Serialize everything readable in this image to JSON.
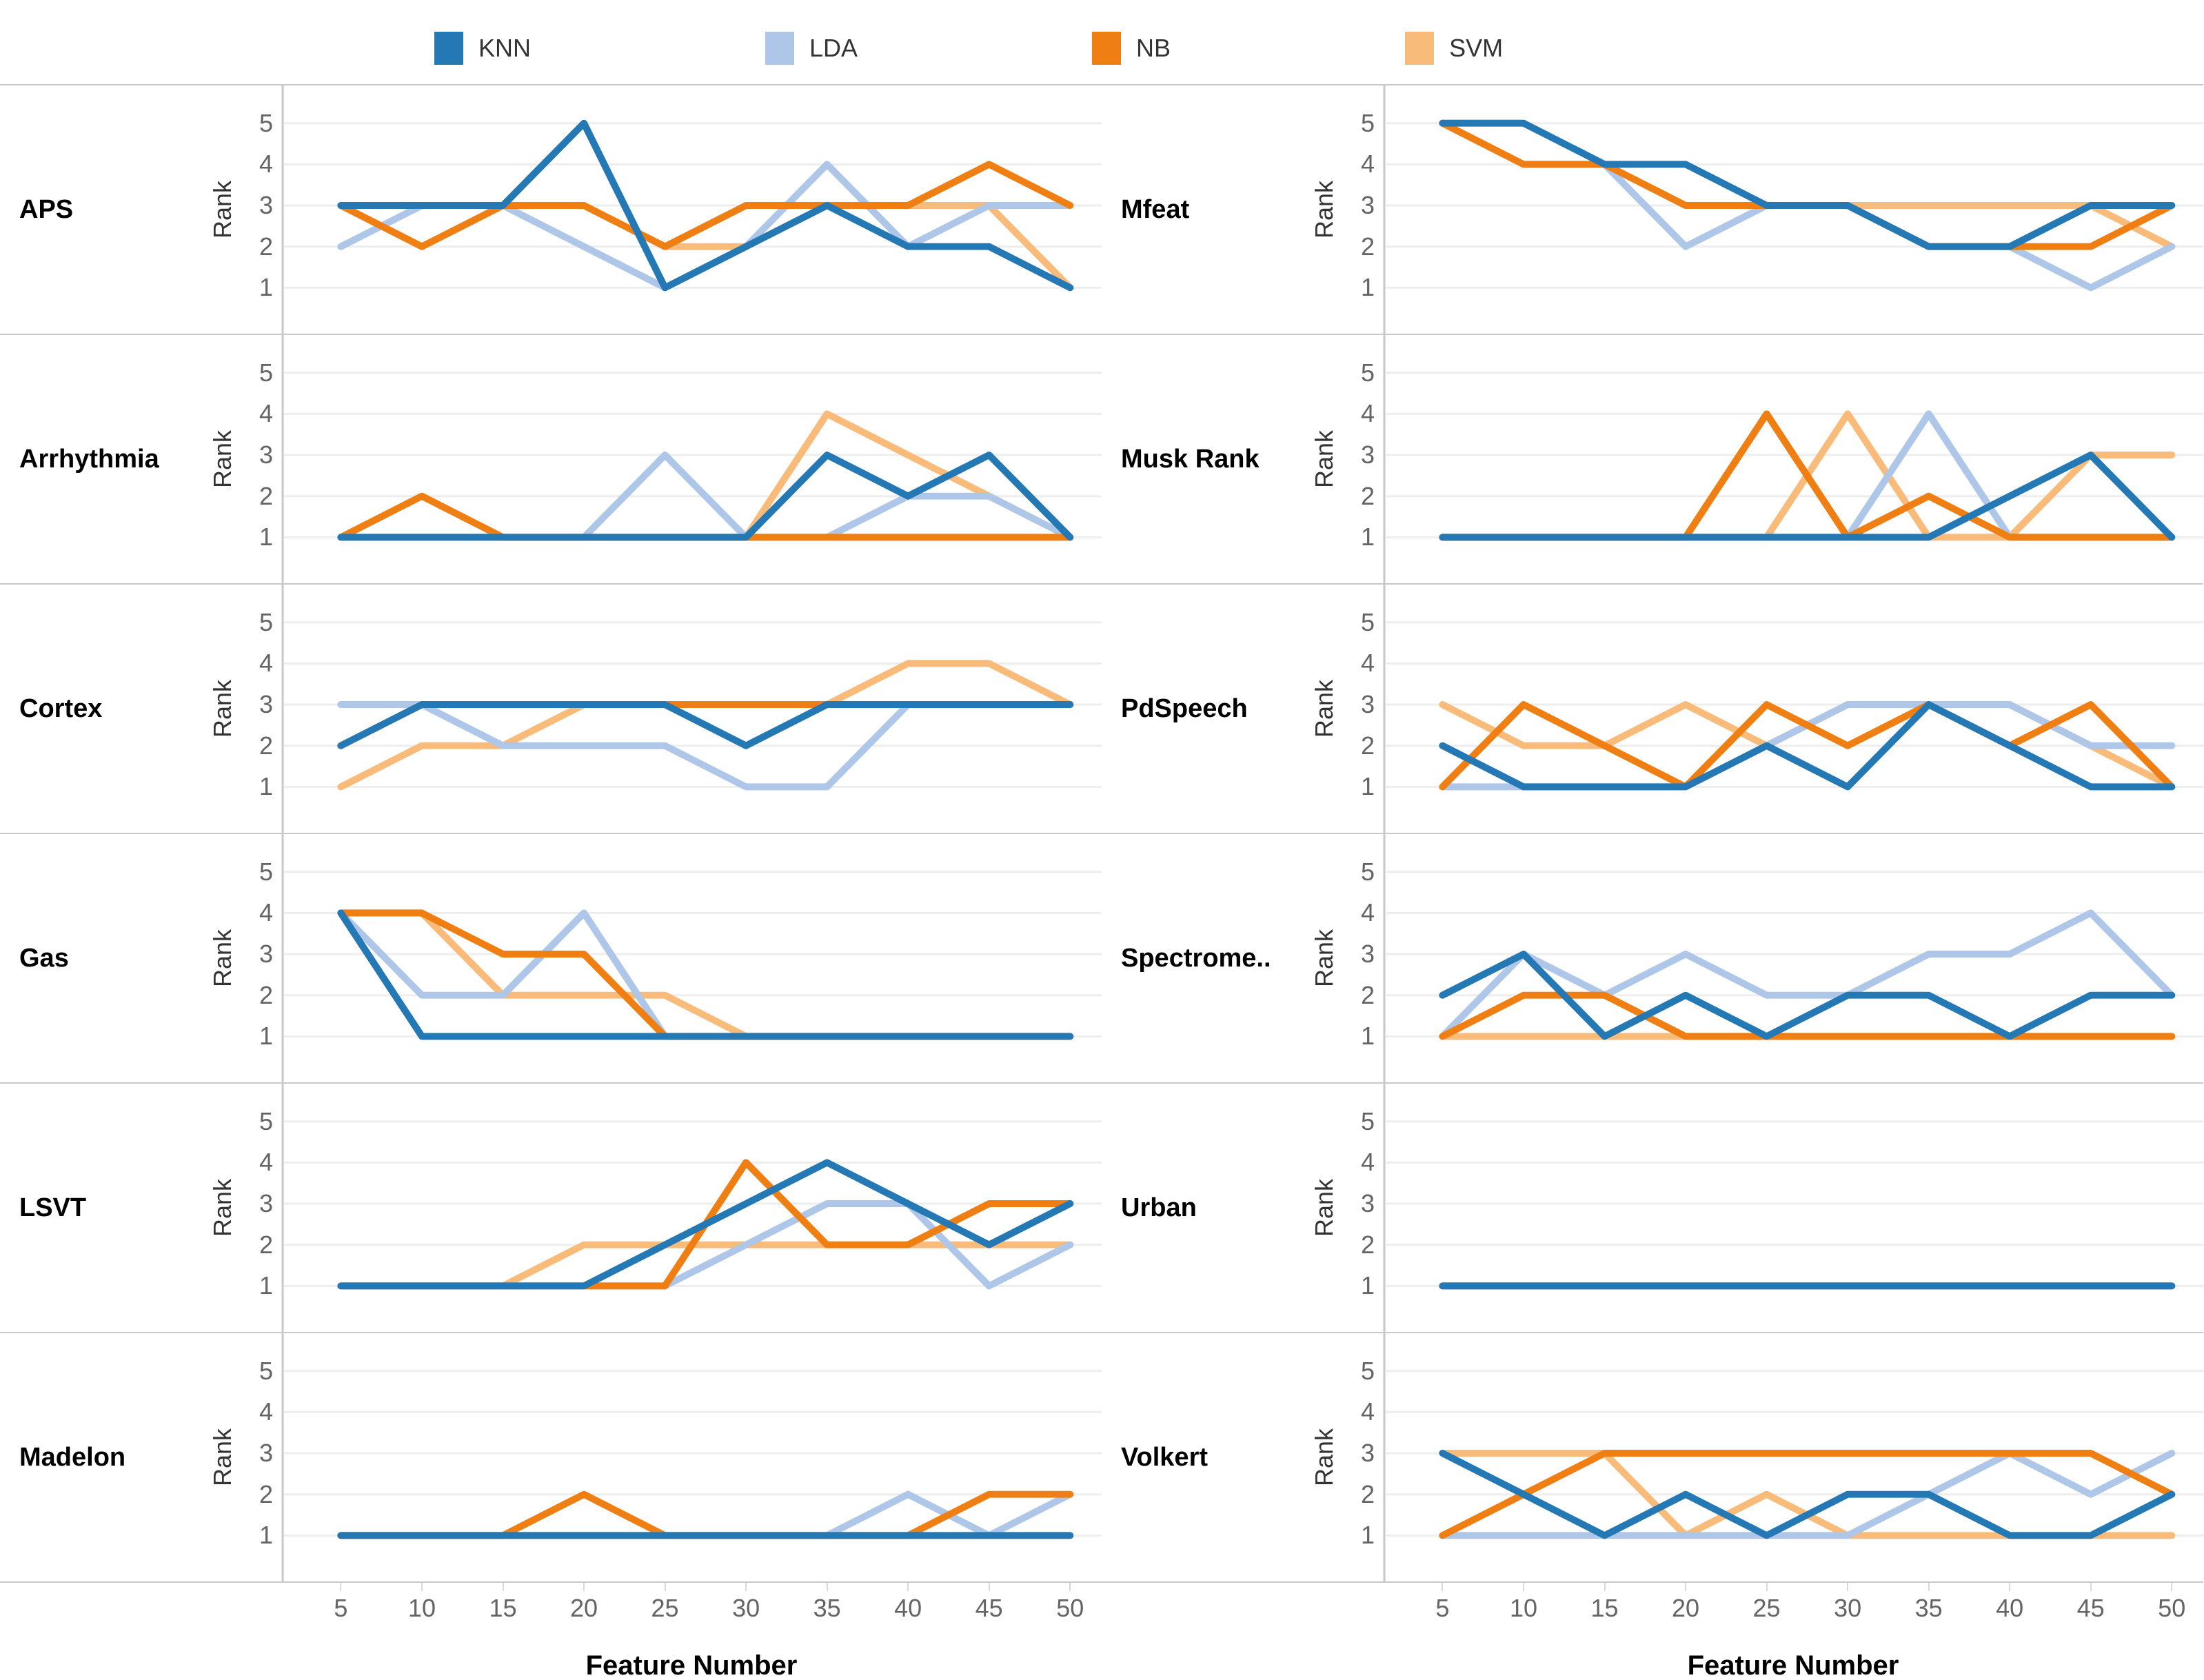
{
  "legend": {
    "items": [
      {
        "label": "KNN",
        "color": "#2478b4"
      },
      {
        "label": "LDA",
        "color": "#aec6e8"
      },
      {
        "label": "NB",
        "color": "#f07f13"
      },
      {
        "label": "SVM",
        "color": "#f9bb7a"
      }
    ]
  },
  "axis": {
    "y_label": "Rank",
    "x_label": "Feature Number",
    "x_ticks": [
      "5",
      "10",
      "15",
      "20",
      "25",
      "30",
      "35",
      "40",
      "45",
      "50"
    ],
    "y_ticks": [
      "5",
      "4",
      "3",
      "2",
      "1"
    ],
    "y_range": [
      1,
      5
    ]
  },
  "chart_data": {
    "type": "line",
    "x": [
      5,
      10,
      15,
      20,
      25,
      30,
      35,
      40,
      45,
      50
    ],
    "xlabel": "Feature Number",
    "ylabel": "Rank",
    "ylim": [
      1,
      5
    ],
    "grid": true,
    "legend_position": "top",
    "layout": {
      "columns": 2,
      "rows_per_column": 6,
      "draw_order": [
        "SVM",
        "LDA",
        "NB",
        "KNN"
      ]
    },
    "panels": [
      {
        "name": "APS",
        "series": [
          {
            "name": "KNN",
            "values": [
              3,
              3,
              3,
              5,
              1,
              2,
              3,
              2,
              2,
              1
            ]
          },
          {
            "name": "LDA",
            "values": [
              2,
              3,
              3,
              2,
              1,
              2,
              4,
              2,
              3,
              3
            ]
          },
          {
            "name": "NB",
            "values": [
              3,
              2,
              3,
              3,
              2,
              3,
              3,
              3,
              4,
              3
            ]
          },
          {
            "name": "SVM",
            "values": [
              3,
              2,
              3,
              3,
              2,
              2,
              3,
              3,
              3,
              1
            ]
          }
        ]
      },
      {
        "name": "Arrhythmia",
        "series": [
          {
            "name": "KNN",
            "values": [
              1,
              1,
              1,
              1,
              1,
              1,
              3,
              2,
              3,
              1
            ]
          },
          {
            "name": "LDA",
            "values": [
              1,
              1,
              1,
              1,
              3,
              1,
              1,
              2,
              2,
              1
            ]
          },
          {
            "name": "NB",
            "values": [
              1,
              2,
              1,
              1,
              1,
              1,
              1,
              1,
              1,
              1
            ]
          },
          {
            "name": "SVM",
            "values": [
              1,
              1,
              1,
              1,
              1,
              1,
              4,
              3,
              2,
              1
            ]
          }
        ]
      },
      {
        "name": "Cortex",
        "series": [
          {
            "name": "KNN",
            "values": [
              2,
              3,
              3,
              3,
              3,
              2,
              3,
              3,
              3,
              3
            ]
          },
          {
            "name": "LDA",
            "values": [
              3,
              3,
              2,
              2,
              2,
              1,
              1,
              3,
              3,
              3
            ]
          },
          {
            "name": "NB",
            "values": [
              2,
              3,
              3,
              3,
              3,
              3,
              3,
              3,
              3,
              3
            ]
          },
          {
            "name": "SVM",
            "values": [
              1,
              2,
              2,
              3,
              3,
              3,
              3,
              4,
              4,
              3
            ]
          }
        ]
      },
      {
        "name": "Gas",
        "series": [
          {
            "name": "KNN",
            "values": [
              4,
              1,
              1,
              1,
              1,
              1,
              1,
              1,
              1,
              1
            ]
          },
          {
            "name": "LDA",
            "values": [
              4,
              2,
              2,
              4,
              1,
              1,
              1,
              1,
              1,
              1
            ]
          },
          {
            "name": "NB",
            "values": [
              4,
              4,
              3,
              3,
              1,
              1,
              1,
              1,
              1,
              1
            ]
          },
          {
            "name": "SVM",
            "values": [
              4,
              4,
              2,
              2,
              2,
              1,
              1,
              1,
              1,
              1
            ]
          }
        ]
      },
      {
        "name": "LSVT",
        "series": [
          {
            "name": "KNN",
            "values": [
              1,
              1,
              1,
              1,
              2,
              3,
              4,
              3,
              2,
              3
            ]
          },
          {
            "name": "LDA",
            "values": [
              1,
              1,
              1,
              1,
              1,
              2,
              3,
              3,
              1,
              2
            ]
          },
          {
            "name": "NB",
            "values": [
              1,
              1,
              1,
              1,
              1,
              4,
              2,
              2,
              3,
              3
            ]
          },
          {
            "name": "SVM",
            "values": [
              1,
              1,
              1,
              2,
              2,
              2,
              2,
              2,
              2,
              2
            ]
          }
        ]
      },
      {
        "name": "Madelon",
        "series": [
          {
            "name": "KNN",
            "values": [
              1,
              1,
              1,
              1,
              1,
              1,
              1,
              1,
              1,
              1
            ]
          },
          {
            "name": "LDA",
            "values": [
              1,
              1,
              1,
              1,
              1,
              1,
              1,
              2,
              1,
              2
            ]
          },
          {
            "name": "NB",
            "values": [
              1,
              1,
              1,
              2,
              1,
              1,
              1,
              1,
              2,
              2
            ]
          },
          {
            "name": "SVM",
            "values": [
              1,
              1,
              1,
              1,
              1,
              1,
              1,
              1,
              1,
              1
            ]
          }
        ]
      },
      {
        "name": "Mfeat",
        "series": [
          {
            "name": "KNN",
            "values": [
              5,
              5,
              4,
              4,
              3,
              3,
              2,
              2,
              3,
              3
            ]
          },
          {
            "name": "LDA",
            "values": [
              5,
              5,
              4,
              2,
              3,
              3,
              2,
              2,
              1,
              2
            ]
          },
          {
            "name": "NB",
            "values": [
              5,
              4,
              4,
              3,
              3,
              3,
              2,
              2,
              2,
              3
            ]
          },
          {
            "name": "SVM",
            "values": [
              5,
              4,
              4,
              3,
              3,
              3,
              3,
              3,
              3,
              2
            ]
          }
        ]
      },
      {
        "name": "Musk Rank",
        "series": [
          {
            "name": "KNN",
            "values": [
              1,
              1,
              1,
              1,
              1,
              1,
              1,
              2,
              3,
              1
            ]
          },
          {
            "name": "LDA",
            "values": [
              1,
              1,
              1,
              1,
              1,
              1,
              4,
              1,
              1,
              1
            ]
          },
          {
            "name": "NB",
            "values": [
              1,
              1,
              1,
              1,
              4,
              1,
              2,
              1,
              1,
              1
            ]
          },
          {
            "name": "SVM",
            "values": [
              1,
              1,
              1,
              1,
              1,
              4,
              1,
              1,
              3,
              3
            ]
          }
        ]
      },
      {
        "name": "PdSpeech",
        "series": [
          {
            "name": "KNN",
            "values": [
              2,
              1,
              1,
              1,
              2,
              1,
              3,
              2,
              1,
              1
            ]
          },
          {
            "name": "LDA",
            "values": [
              1,
              1,
              1,
              1,
              2,
              3,
              3,
              3,
              2,
              2
            ]
          },
          {
            "name": "NB",
            "values": [
              1,
              3,
              2,
              1,
              3,
              2,
              3,
              2,
              3,
              1
            ]
          },
          {
            "name": "SVM",
            "values": [
              3,
              2,
              2,
              3,
              2,
              3,
              3,
              3,
              2,
              1
            ]
          }
        ]
      },
      {
        "name": "Spectrome..",
        "series": [
          {
            "name": "KNN",
            "values": [
              2,
              3,
              1,
              2,
              1,
              2,
              2,
              1,
              2,
              2
            ]
          },
          {
            "name": "LDA",
            "values": [
              1,
              3,
              2,
              3,
              2,
              2,
              3,
              3,
              4,
              2
            ]
          },
          {
            "name": "NB",
            "values": [
              1,
              2,
              2,
              1,
              1,
              1,
              1,
              1,
              1,
              1
            ]
          },
          {
            "name": "SVM",
            "values": [
              1,
              1,
              1,
              1,
              1,
              1,
              1,
              1,
              1,
              1
            ]
          }
        ]
      },
      {
        "name": "Urban",
        "series": [
          {
            "name": "KNN",
            "values": [
              1,
              1,
              1,
              1,
              1,
              1,
              1,
              1,
              1,
              1
            ]
          },
          {
            "name": "LDA",
            "values": [
              1,
              1,
              1,
              1,
              1,
              1,
              1,
              1,
              1,
              1
            ]
          },
          {
            "name": "NB",
            "values": [
              1,
              1,
              1,
              1,
              1,
              1,
              1,
              1,
              1,
              1
            ]
          },
          {
            "name": "SVM",
            "values": [
              1,
              1,
              1,
              1,
              1,
              1,
              1,
              1,
              1,
              1
            ]
          }
        ]
      },
      {
        "name": "Volkert",
        "series": [
          {
            "name": "KNN",
            "values": [
              3,
              2,
              1,
              2,
              1,
              2,
              2,
              1,
              1,
              2
            ]
          },
          {
            "name": "LDA",
            "values": [
              1,
              1,
              1,
              1,
              1,
              1,
              2,
              3,
              2,
              3
            ]
          },
          {
            "name": "NB",
            "values": [
              1,
              2,
              3,
              3,
              3,
              3,
              3,
              3,
              3,
              2
            ]
          },
          {
            "name": "SVM",
            "values": [
              3,
              3,
              3,
              1,
              2,
              1,
              1,
              1,
              1,
              1
            ]
          }
        ]
      }
    ]
  }
}
